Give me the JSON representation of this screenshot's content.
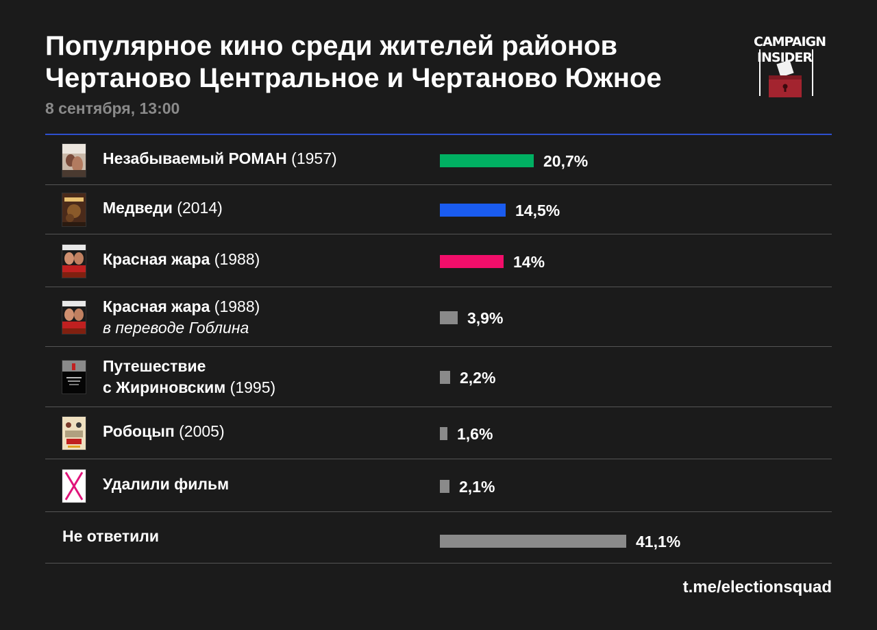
{
  "title_line1": "Популярное кино среди жителей районов",
  "title_line2": "Чертаново Центральное и Чертаново Южное",
  "subtitle": "8 сентября, 13:00",
  "logo": {
    "line1": "CAMPAIGN",
    "line2": "INSIDER"
  },
  "footer": "t.me/electionsquad",
  "colors": {
    "green": "#00b062",
    "blue": "#1a5cf0",
    "pink": "#f20e6a",
    "gray": "#8a8a8a",
    "accent_rule": "#2d4fd0"
  },
  "chart_data": {
    "type": "bar",
    "orientation": "horizontal",
    "unit": "%",
    "items": [
      {
        "title": "Незабываемый РОМАН",
        "year": "(1957)",
        "note": "",
        "value": 20.7,
        "label": "20,7%",
        "color": "#00b062",
        "thumb": "thumb-romance"
      },
      {
        "title": "Медведи",
        "year": "(2014)",
        "note": "",
        "value": 14.5,
        "label": "14,5%",
        "color": "#1a5cf0",
        "thumb": "thumb-bears"
      },
      {
        "title": "Красная жара",
        "year": "(1988)",
        "note": "",
        "value": 14,
        "label": "14%",
        "color": "#f20e6a",
        "thumb": "thumb-redheat"
      },
      {
        "title": "Красная жара",
        "year": "(1988)",
        "note": "в переводе Гоблина",
        "value": 3.9,
        "label": "3,9%",
        "color": "#8a8a8a",
        "thumb": "thumb-redheat"
      },
      {
        "title": "Путешествие",
        "title2": "с Жириновским",
        "year": "(1995)",
        "note": "",
        "value": 2.2,
        "label": "2,2%",
        "color": "#8a8a8a",
        "thumb": "thumb-zhirinovsky"
      },
      {
        "title": "Робоцып",
        "year": "(2005)",
        "note": "",
        "value": 1.6,
        "label": "1,6%",
        "color": "#8a8a8a",
        "thumb": "thumb-robotchicken"
      },
      {
        "title": "Удалили фильм",
        "year": "",
        "note": "",
        "value": 2.1,
        "label": "2,1%",
        "color": "#8a8a8a",
        "thumb": "thumb-deleted"
      },
      {
        "title": "Не ответили",
        "year": "",
        "note": "",
        "value": 41.1,
        "label": "41,1%",
        "color": "#8a8a8a",
        "thumb": ""
      }
    ]
  }
}
